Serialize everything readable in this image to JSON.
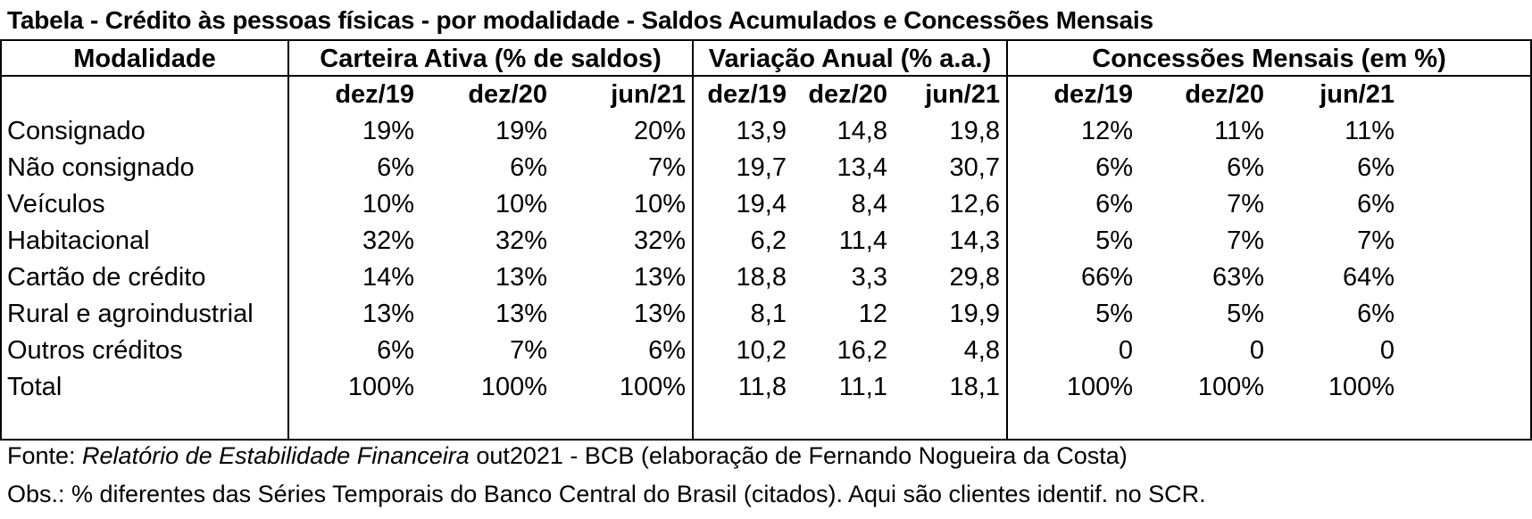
{
  "title": "Tabela - Crédito às pessoas físicas - por modalidade - Saldos Acumulados e Concessões Mensais",
  "headers": {
    "modalidade": "Modalidade",
    "group1": "Carteira Ativa (% de saldos)",
    "group2": "Variação Anual (% a.a.)",
    "group3": "Concessões Mensais (em %)"
  },
  "periods": [
    "dez/19",
    "dez/20",
    "jun/21",
    "dez/19",
    "dez/20",
    "jun/21",
    "dez/19",
    "dez/20",
    "jun/21"
  ],
  "rows": [
    {
      "label": "Consignado",
      "values": [
        "19%",
        "19%",
        "20%",
        "13,9",
        "14,8",
        "19,8",
        "12%",
        "11%",
        "11%"
      ]
    },
    {
      "label": "Não consignado",
      "values": [
        "6%",
        "6%",
        "7%",
        "19,7",
        "13,4",
        "30,7",
        "6%",
        "6%",
        "6%"
      ]
    },
    {
      "label": "Veículos",
      "values": [
        "10%",
        "10%",
        "10%",
        "19,4",
        "8,4",
        "12,6",
        "6%",
        "7%",
        "6%"
      ]
    },
    {
      "label": "Habitacional",
      "values": [
        "32%",
        "32%",
        "32%",
        "6,2",
        "11,4",
        "14,3",
        "5%",
        "7%",
        "7%"
      ]
    },
    {
      "label": "Cartão de crédito",
      "values": [
        "14%",
        "13%",
        "13%",
        "18,8",
        "3,3",
        "29,8",
        "66%",
        "63%",
        "64%"
      ]
    },
    {
      "label": "Rural e agroindustrial",
      "values": [
        "13%",
        "13%",
        "13%",
        "8,1",
        "12",
        "19,9",
        "5%",
        "5%",
        "6%"
      ]
    },
    {
      "label": "Outros créditos",
      "values": [
        "6%",
        "7%",
        "6%",
        "10,2",
        "16,2",
        "4,8",
        "0",
        "0",
        "0"
      ]
    },
    {
      "label": "Total",
      "values": [
        "100%",
        "100%",
        "100%",
        "11,8",
        "11,1",
        "18,1",
        "100%",
        "100%",
        "100%"
      ]
    }
  ],
  "source": {
    "prefix": "Fonte: ",
    "publication": "Relatório de Estabilidade Financeira",
    "suffix": " out2021 - BCB (elaboração de Fernando Nogueira da Costa)"
  },
  "note": "Obs.: % diferentes das Séries Temporais do Banco Central do Brasil (citados). Aqui são clientes identif. no SCR."
}
